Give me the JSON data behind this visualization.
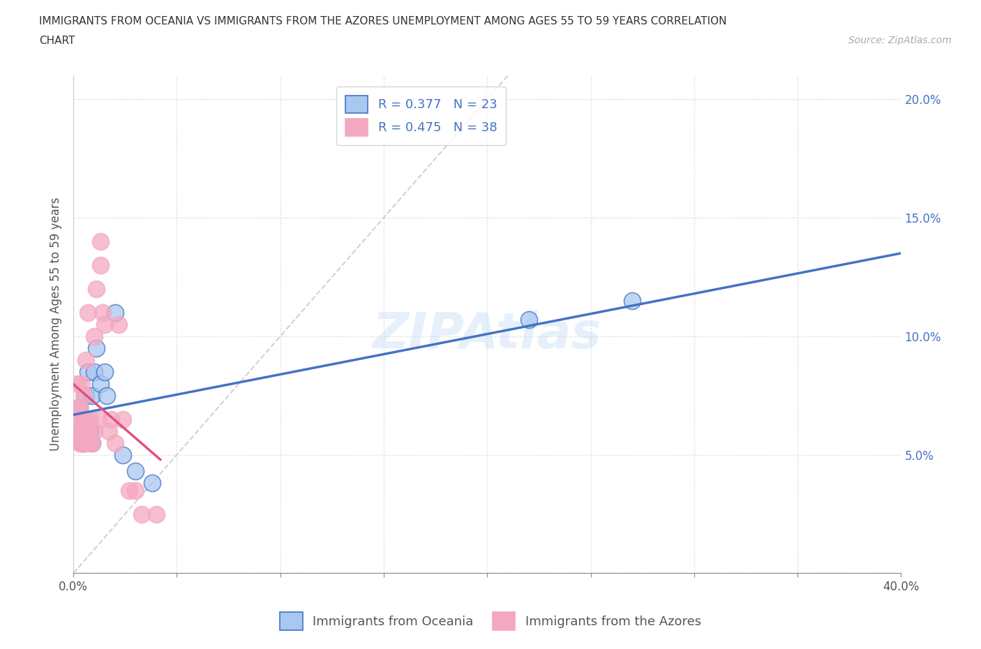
{
  "title_line1": "IMMIGRANTS FROM OCEANIA VS IMMIGRANTS FROM THE AZORES UNEMPLOYMENT AMONG AGES 55 TO 59 YEARS CORRELATION",
  "title_line2": "CHART",
  "source": "Source: ZipAtlas.com",
  "ylabel": "Unemployment Among Ages 55 to 59 years",
  "xlim": [
    0.0,
    0.4
  ],
  "ylim": [
    0.0,
    0.21
  ],
  "xticks": [
    0.0,
    0.05,
    0.1,
    0.15,
    0.2,
    0.25,
    0.3,
    0.35,
    0.4
  ],
  "yticks": [
    0.0,
    0.05,
    0.1,
    0.15,
    0.2
  ],
  "watermark": "ZIPAtlas",
  "legend_r1": "R = 0.377",
  "legend_n1": "N = 23",
  "legend_r2": "R = 0.475",
  "legend_n2": "N = 38",
  "color_oceania": "#a8c8f0",
  "color_azores": "#f4a8c0",
  "line_color_oceania": "#4472c4",
  "line_color_azores": "#e05080",
  "diagonal_color": "#cccccc",
  "oceania_x": [
    0.002,
    0.003,
    0.003,
    0.004,
    0.005,
    0.006,
    0.006,
    0.007,
    0.007,
    0.008,
    0.009,
    0.009,
    0.01,
    0.011,
    0.013,
    0.015,
    0.016,
    0.02,
    0.024,
    0.03,
    0.038,
    0.22,
    0.27
  ],
  "oceania_y": [
    0.06,
    0.065,
    0.07,
    0.055,
    0.055,
    0.065,
    0.075,
    0.06,
    0.085,
    0.06,
    0.055,
    0.075,
    0.085,
    0.095,
    0.08,
    0.085,
    0.075,
    0.11,
    0.05,
    0.043,
    0.038,
    0.107,
    0.115
  ],
  "azores_x": [
    0.001,
    0.002,
    0.002,
    0.002,
    0.003,
    0.003,
    0.003,
    0.004,
    0.004,
    0.004,
    0.005,
    0.005,
    0.005,
    0.006,
    0.006,
    0.006,
    0.007,
    0.007,
    0.008,
    0.008,
    0.009,
    0.01,
    0.01,
    0.011,
    0.012,
    0.013,
    0.013,
    0.014,
    0.015,
    0.017,
    0.018,
    0.02,
    0.022,
    0.024,
    0.027,
    0.03,
    0.033,
    0.04
  ],
  "azores_y": [
    0.065,
    0.06,
    0.07,
    0.08,
    0.055,
    0.06,
    0.07,
    0.055,
    0.06,
    0.08,
    0.055,
    0.065,
    0.075,
    0.055,
    0.065,
    0.09,
    0.06,
    0.11,
    0.055,
    0.065,
    0.055,
    0.06,
    0.1,
    0.12,
    0.065,
    0.13,
    0.14,
    0.11,
    0.105,
    0.06,
    0.065,
    0.055,
    0.105,
    0.065,
    0.035,
    0.035,
    0.025,
    0.025
  ]
}
